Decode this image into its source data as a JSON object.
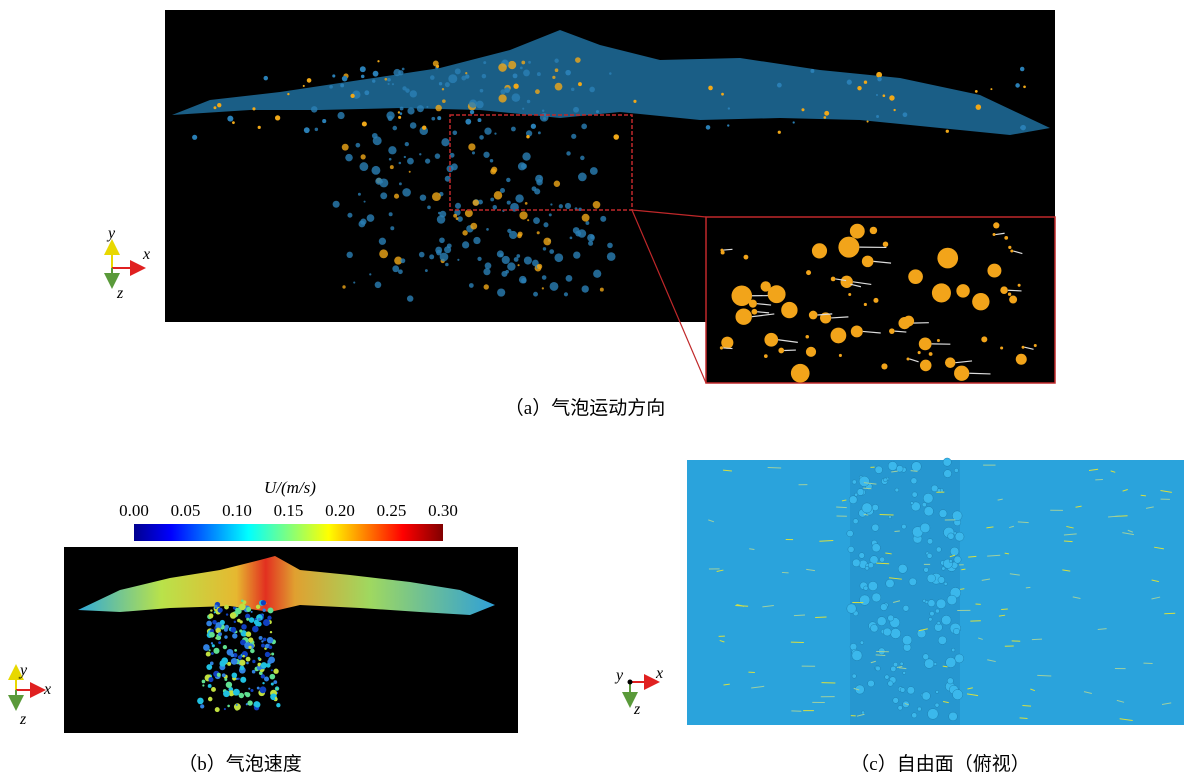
{
  "panel_a": {
    "caption": "（a）气泡运动方向",
    "axes": {
      "y": "y",
      "x": "x",
      "z": "z"
    }
  },
  "panel_b": {
    "caption": "（b）气泡速度",
    "axes": {
      "y": "y",
      "x": "x",
      "z": "z"
    },
    "colorbar": {
      "label": "U/(m/s)",
      "lim": [
        0,
        0.3
      ],
      "ticks": [
        {
          "value": 0,
          "label": "0.00"
        },
        {
          "value": 0.05,
          "label": "0.05"
        },
        {
          "value": 0.1,
          "label": "0.10"
        },
        {
          "value": 0.15,
          "label": "0.15"
        },
        {
          "value": 0.2,
          "label": "0.20"
        },
        {
          "value": 0.25,
          "label": "0.25"
        },
        {
          "value": 0.3,
          "label": "0.30"
        }
      ]
    }
  },
  "panel_c": {
    "caption": "（c）自由面（俯视）",
    "axes": {
      "y": "y",
      "x": "x",
      "z": "z"
    }
  }
}
